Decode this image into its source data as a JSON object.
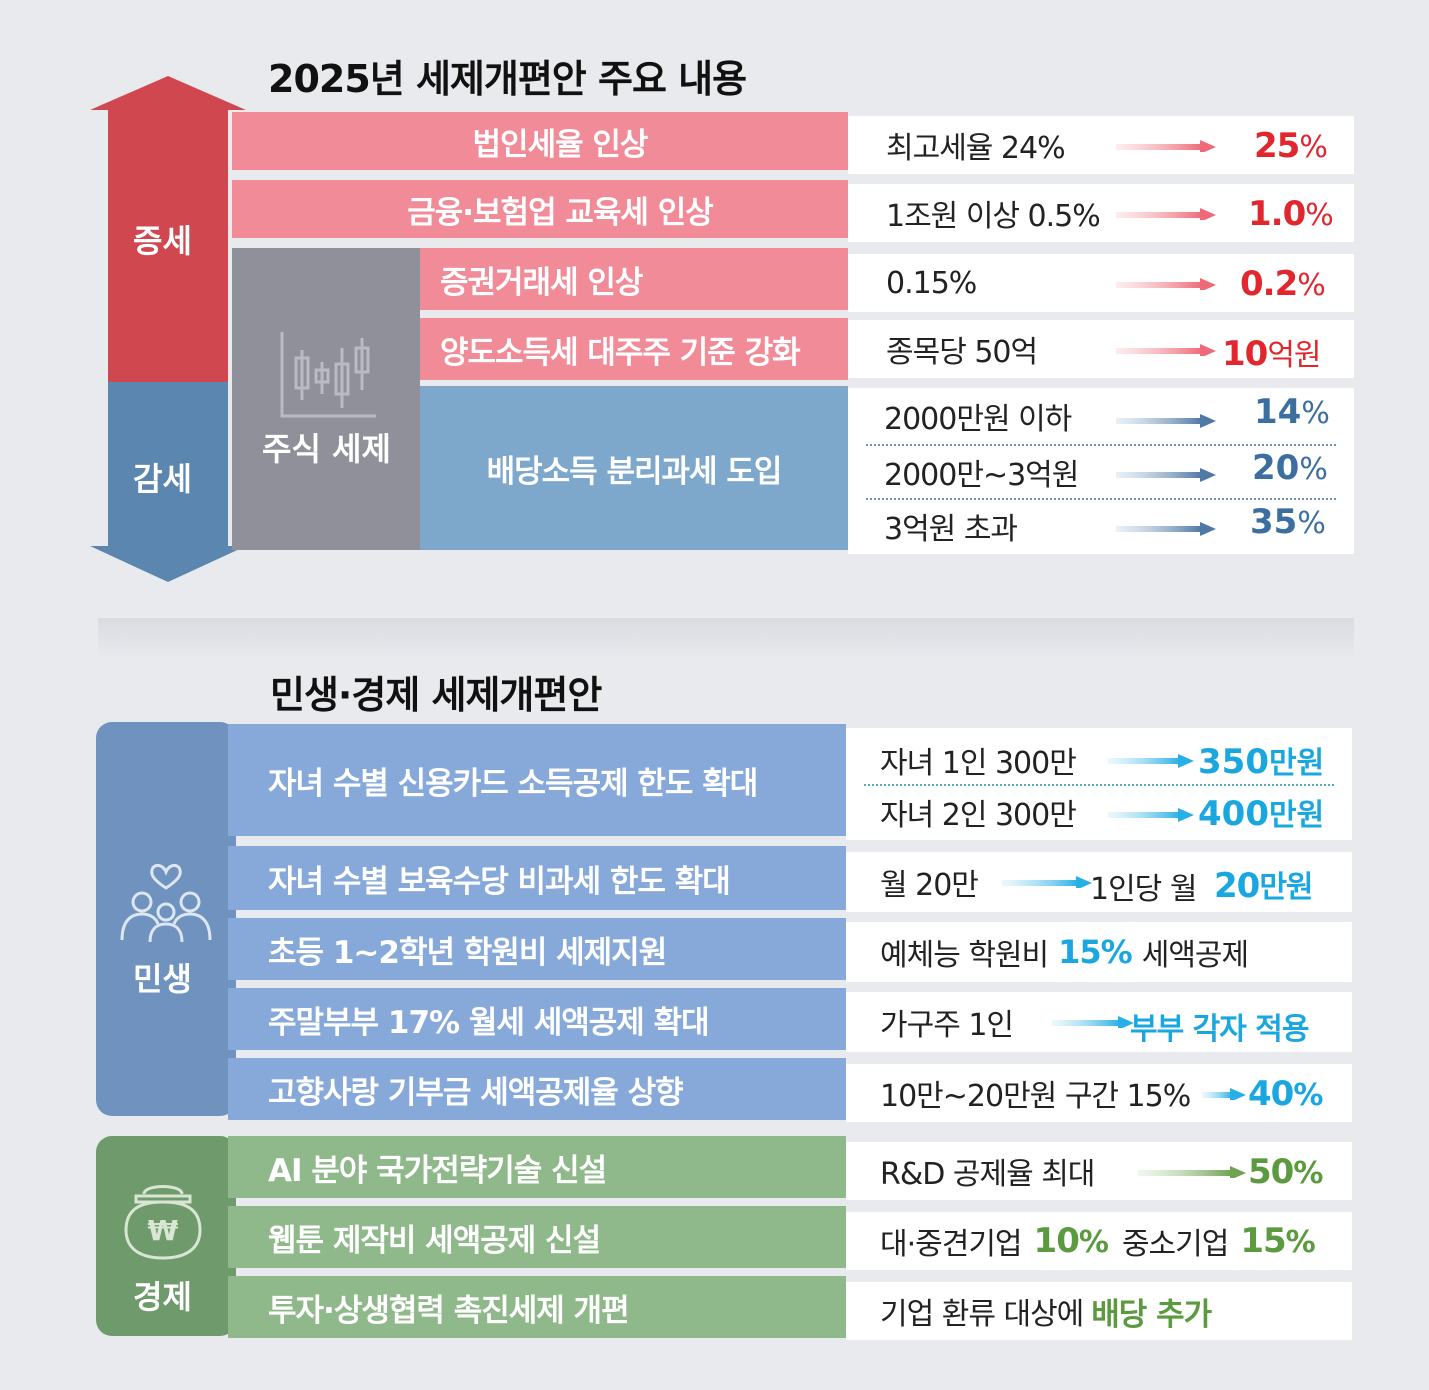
{
  "section1": {
    "title": "2025년 세제개편안 주요 내용",
    "increase_label": "증세",
    "decrease_label": "감세",
    "stock_tax_label": "주식 세제",
    "rows": [
      {
        "item": "법인세율 인상",
        "from": "최고세율 24%",
        "to_num": "25",
        "to_unit": "%"
      },
      {
        "item": "금융·보험업 교육세 인상",
        "from": "1조원 이상 0.5%",
        "to_num": "1.0",
        "to_unit": "%"
      },
      {
        "item": "증권거래세 인상",
        "from": "0.15%",
        "to_num": "0.2",
        "to_unit": "%"
      },
      {
        "item": "양도소득세 대주주 기준 강화",
        "from": "종목당 50억",
        "to_num": "10",
        "to_unit": "억원"
      }
    ],
    "dividend": {
      "item": "배당소득 분리과세 도입",
      "tiers": [
        {
          "from": "2000만원 이하",
          "to_num": "14",
          "to_unit": "%"
        },
        {
          "from": "2000만~3억원",
          "to_num": "20",
          "to_unit": "%"
        },
        {
          "from": "3억원 초과",
          "to_num": "35",
          "to_unit": "%"
        }
      ]
    }
  },
  "section2": {
    "title": "민생·경제 세제개편안",
    "livelihood_label": "민생",
    "economy_label": "경제",
    "livelihood_rows": [
      {
        "item": "자녀 수별 신용카드 소득공제 한도 확대"
      },
      {
        "item": "자녀 수별 보육수당 비과세 한도 확대"
      },
      {
        "item": "초등 1~2학년 학원비 세제지원"
      },
      {
        "item": "주말부부 17% 월세 세액공제 확대"
      },
      {
        "item": "고향사랑 기부금 세액공제율 상향"
      }
    ],
    "card": [
      {
        "from": "자녀 1인 300만",
        "to_num": "350",
        "to_unit": "만원"
      },
      {
        "from": "자녀 2인 300만",
        "to_num": "400",
        "to_unit": "만원"
      }
    ],
    "childcare": {
      "from": "월 20만",
      "mid": "1인당 월",
      "to_num": "20",
      "to_unit": "만원"
    },
    "academy": {
      "pre": "예체능 학원비",
      "num": "15%",
      "post": "세액공제"
    },
    "weekend": {
      "from": "가구주 1인",
      "to": "부부 각자 적용"
    },
    "hometown": {
      "from": "10만~20만원 구간 15%",
      "to_num": "40",
      "to_unit": "%"
    },
    "economy_rows": [
      {
        "item": "AI 분야 국가전략기술 신설"
      },
      {
        "item": "웹툰 제작비 세액공제 신설"
      },
      {
        "item": "투자·상생협력 촉진세제 개편"
      }
    ],
    "ai": {
      "from": "R&D 공제율 최대",
      "to_num": "50",
      "to_unit": "%"
    },
    "webtoon": {
      "a": "대·중견기업",
      "a_num": "10",
      "a_unit": "%",
      "b": "중소기업",
      "b_num": "15",
      "b_unit": "%"
    },
    "invest": {
      "pre": "기업 환류 대상에",
      "bold": "배당 추가"
    }
  },
  "colors": {
    "increase": "#d0474f",
    "decrease": "#5a86b0",
    "pink_bar": "#f28b98",
    "stock_gray": "#8f9099",
    "dividend_bar": "#7ea8cb",
    "livelihood_dark": "#6f92bf",
    "livelihood_bar": "#86a9d9",
    "economy_dark": "#6f9a6c",
    "economy_bar": "#8fb98a"
  },
  "icons": [
    "candlestick-chart-icon",
    "family-heart-icon",
    "won-wallet-icon"
  ]
}
